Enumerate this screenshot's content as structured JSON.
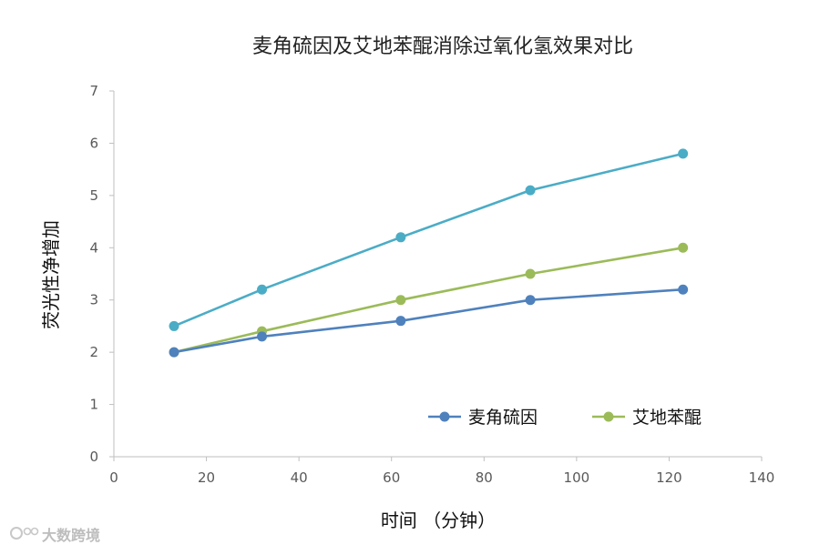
{
  "chart_data": {
    "type": "line",
    "title": "麦角硫因及艾地苯醌消除过氧化氢效果对比",
    "xlabel": "时间 （分钟）",
    "ylabel": "荧光性净增加",
    "xlim": [
      0,
      140
    ],
    "ylim": [
      0,
      7
    ],
    "x_ticks": [
      0,
      20,
      40,
      60,
      80,
      100,
      120,
      140
    ],
    "y_ticks": [
      0,
      1,
      2,
      3,
      4,
      5,
      6,
      7
    ],
    "grid": false,
    "legend_position": "lower-right",
    "series": [
      {
        "name": "",
        "color": "#4bacc6",
        "in_legend": false,
        "x": [
          13,
          32,
          62,
          90,
          123
        ],
        "y": [
          2.5,
          3.2,
          4.2,
          5.1,
          5.8
        ]
      },
      {
        "name": "艾地苯醌",
        "color": "#9bbb59",
        "in_legend": true,
        "x": [
          13,
          32,
          62,
          90,
          123
        ],
        "y": [
          2.0,
          2.4,
          3.0,
          3.5,
          4.0
        ]
      },
      {
        "name": "麦角硫因",
        "color": "#4f81bd",
        "in_legend": true,
        "x": [
          13,
          32,
          62,
          90,
          123
        ],
        "y": [
          2.0,
          2.3,
          2.6,
          3.0,
          3.2
        ]
      }
    ],
    "legend_order": [
      "麦角硫因",
      "艾地苯醌"
    ]
  },
  "watermark": {
    "text": "大数跨境"
  }
}
